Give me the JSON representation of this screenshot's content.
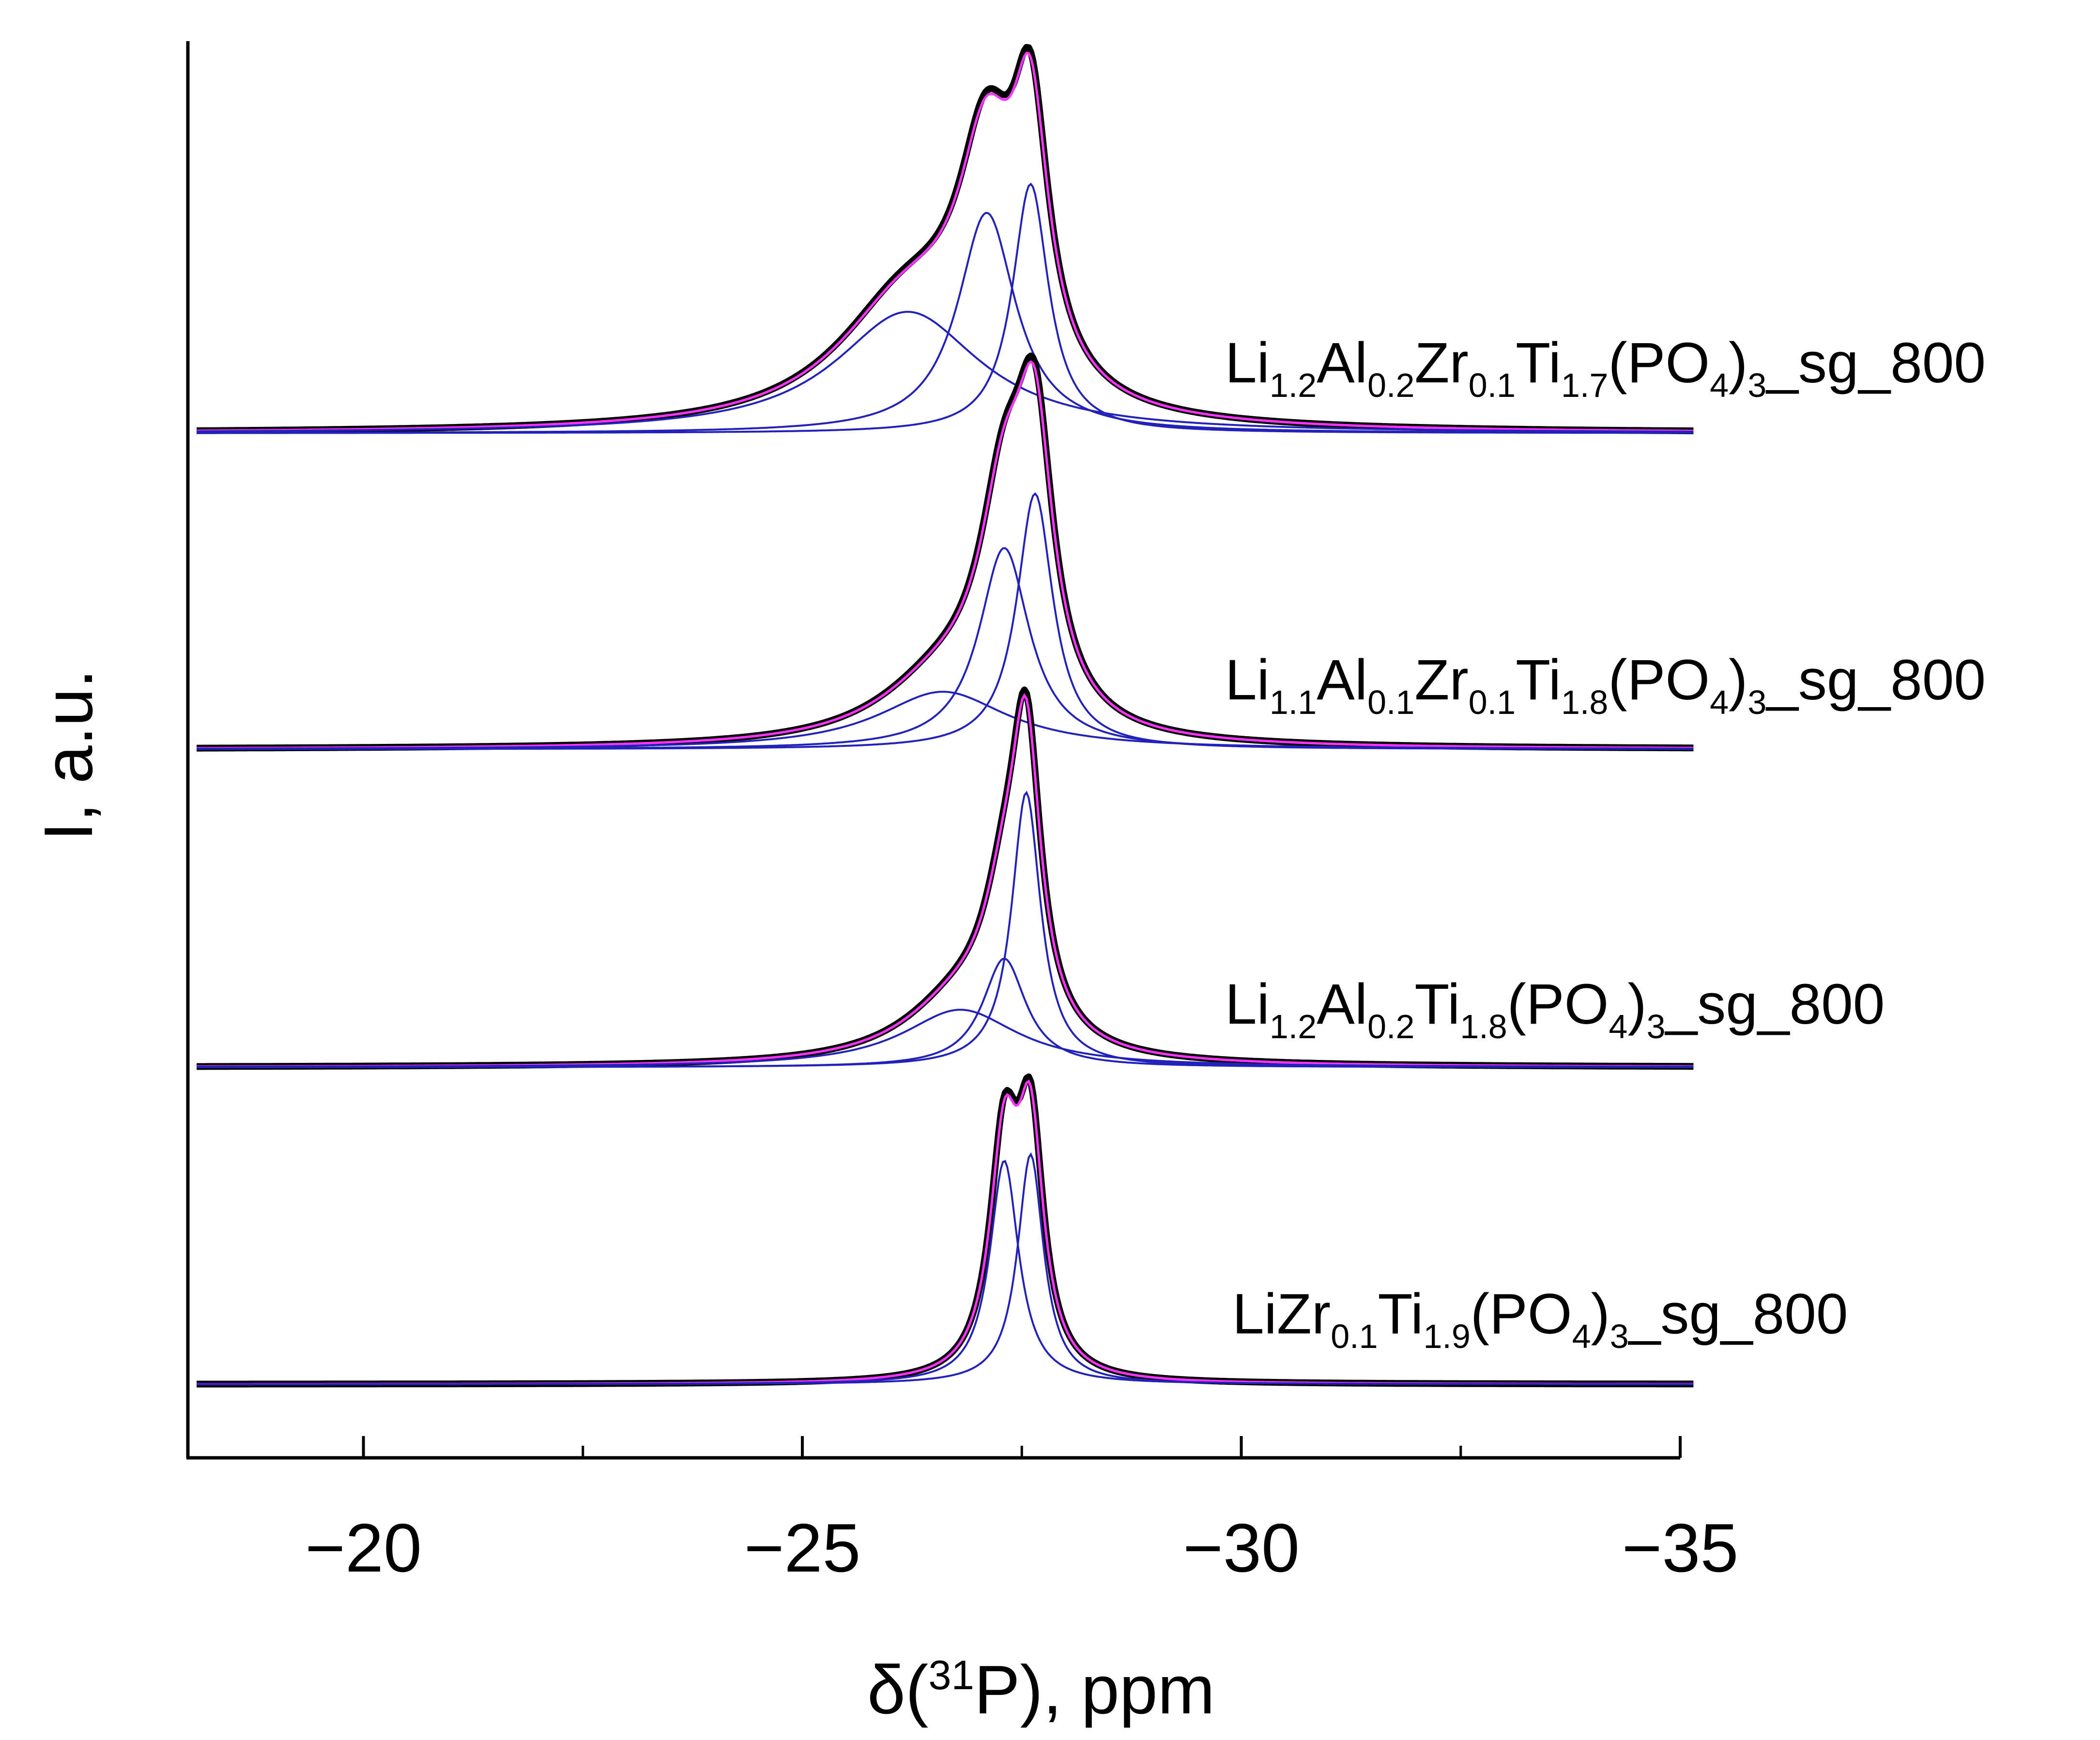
{
  "chart_data": {
    "type": "line",
    "title": "",
    "xlabel": {
      "pre": "δ(",
      "sup": "31",
      "post": "P), ppm"
    },
    "ylabel": "I, a.u.",
    "xlim": [
      -18,
      -35
    ],
    "x_reversed": true,
    "xticks": [
      -20,
      -25,
      -30,
      -35
    ],
    "xtick_labels": [
      "−20",
      "−25",
      "−30",
      "−35"
    ],
    "minor_xticks": [
      -22.5,
      -27.5,
      -32.5
    ],
    "grid": false,
    "colors": {
      "experimental": "#000000",
      "fit": "#ff33ff",
      "component": "#2222bb"
    },
    "traces": [
      {
        "name": "Li1.2Al0.2Zr0.1Ti1.7(PO4)3_sg_800",
        "label": [
          {
            "t": "Li"
          },
          {
            "t": "1.2",
            "sub": true
          },
          {
            "t": "Al"
          },
          {
            "t": "0.2",
            "sub": true
          },
          {
            "t": "Zr"
          },
          {
            "t": "0.1",
            "sub": true
          },
          {
            "t": "Ti"
          },
          {
            "t": "1.7",
            "sub": true
          },
          {
            "t": "(PO"
          },
          {
            "t": "4",
            "sub": true
          },
          {
            "t": ")"
          },
          {
            "t": "3",
            "sub": true
          },
          {
            "t": "_sg_800"
          }
        ],
        "components": [
          {
            "center": -27.6,
            "height": 0.78,
            "width": 0.25
          },
          {
            "center": -27.1,
            "height": 0.69,
            "width": 0.4
          },
          {
            "center": -26.2,
            "height": 0.38,
            "width": 1.0
          }
        ]
      },
      {
        "name": "Li1.1Al0.1Zr0.1Ti1.8(PO4)3_sg_800",
        "label": [
          {
            "t": "Li"
          },
          {
            "t": "1.1",
            "sub": true
          },
          {
            "t": "Al"
          },
          {
            "t": "0.1",
            "sub": true
          },
          {
            "t": "Zr"
          },
          {
            "t": "0.1",
            "sub": true
          },
          {
            "t": "Ti"
          },
          {
            "t": "1.8",
            "sub": true
          },
          {
            "t": "(PO"
          },
          {
            "t": "4",
            "sub": true
          },
          {
            "t": ")"
          },
          {
            "t": "3",
            "sub": true
          },
          {
            "t": "_sg_800"
          }
        ],
        "components": [
          {
            "center": -27.65,
            "height": 0.8,
            "width": 0.25
          },
          {
            "center": -27.3,
            "height": 0.63,
            "width": 0.35
          },
          {
            "center": -26.6,
            "height": 0.18,
            "width": 0.9
          }
        ]
      },
      {
        "name": "Li1.2Al0.2Ti1.8(PO4)3_sg_800",
        "label": [
          {
            "t": "Li"
          },
          {
            "t": "1.2",
            "sub": true
          },
          {
            "t": "Al"
          },
          {
            "t": "0.2",
            "sub": true
          },
          {
            "t": "Ti"
          },
          {
            "t": "1.8",
            "sub": true
          },
          {
            "t": "(PO"
          },
          {
            "t": "4",
            "sub": true
          },
          {
            "t": ")"
          },
          {
            "t": "3",
            "sub": true
          },
          {
            "t": "_sg_800"
          }
        ],
        "components": [
          {
            "center": -27.55,
            "height": 0.86,
            "width": 0.2
          },
          {
            "center": -27.3,
            "height": 0.34,
            "width": 0.3
          },
          {
            "center": -26.8,
            "height": 0.18,
            "width": 0.8
          }
        ]
      },
      {
        "name": "LiZr0.1Ti1.9(PO4)3_sg_800",
        "label": [
          {
            "t": "LiZr"
          },
          {
            "t": "0.1",
            "sub": true
          },
          {
            "t": "Ti"
          },
          {
            "t": "1.9",
            "sub": true
          },
          {
            "t": "(PO"
          },
          {
            "t": "4",
            "sub": true
          },
          {
            "t": ")"
          },
          {
            "t": "3",
            "sub": true
          },
          {
            "t": "_sg_800"
          }
        ],
        "components": [
          {
            "center": -27.3,
            "height": 0.7,
            "width": 0.2
          },
          {
            "center": -27.6,
            "height": 0.72,
            "width": 0.18
          }
        ]
      }
    ]
  }
}
